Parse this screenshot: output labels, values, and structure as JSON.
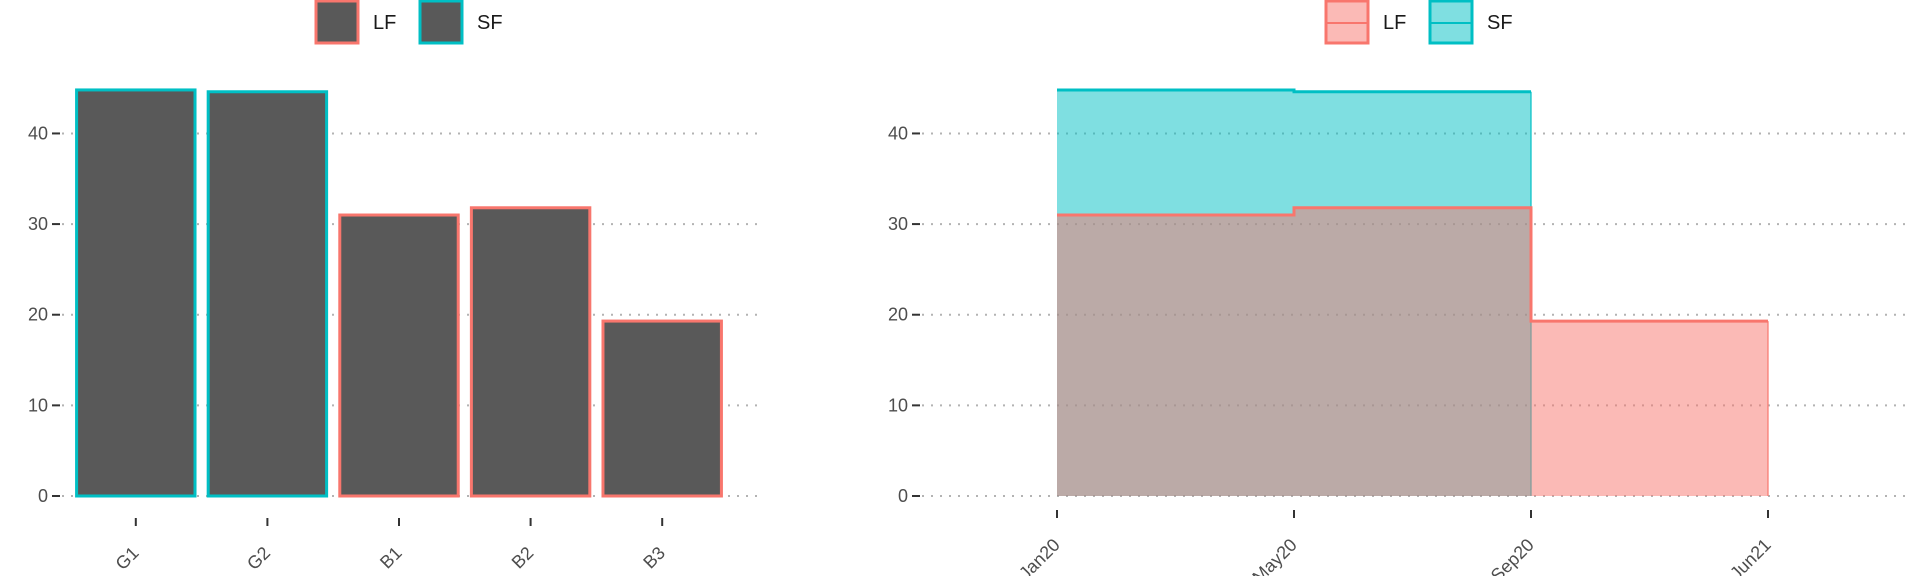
{
  "chart_data": [
    {
      "type": "bar",
      "legend": {
        "position": "top",
        "entries": [
          {
            "label": "LF",
            "color": "#F8766D"
          },
          {
            "label": "SF",
            "color": "#00BFC4"
          }
        ]
      },
      "categories": [
        "G1",
        "G2",
        "B1",
        "B2",
        "B3"
      ],
      "values": [
        44.8,
        44.6,
        31.0,
        31.8,
        19.3
      ],
      "groups": [
        "SF",
        "SF",
        "LF",
        "LF",
        "LF"
      ],
      "fill_color": "#595959",
      "yticks": [
        0,
        10,
        20,
        30,
        40
      ],
      "ylim": [
        0,
        47
      ],
      "grid": "horizontal-dotted"
    },
    {
      "type": "area",
      "legend": {
        "position": "top",
        "entries": [
          {
            "label": "LF",
            "color": "#F8766D"
          },
          {
            "label": "SF",
            "color": "#00BFC4"
          }
        ]
      },
      "step": true,
      "xticks": [
        "Jan20",
        "May20",
        "Sep20",
        "Jun21"
      ],
      "yticks": [
        0,
        10,
        20,
        30,
        40
      ],
      "ylim": [
        0,
        47
      ],
      "series": [
        {
          "name": "LF",
          "color": "#F8766D",
          "points": [
            {
              "x": "Jan20",
              "y": 31.0
            },
            {
              "x": "May20",
              "y": 31.8
            },
            {
              "x": "Sep20",
              "y": 19.3
            },
            {
              "x": "Jun21",
              "y": 19.3
            }
          ]
        },
        {
          "name": "SF",
          "color": "#00BFC4",
          "points": [
            {
              "x": "Jan20",
              "y": 44.8
            },
            {
              "x": "May20",
              "y": 44.6
            },
            {
              "x": "Sep20",
              "y": 44.6
            }
          ]
        }
      ],
      "grid": "horizontal-dotted"
    }
  ]
}
